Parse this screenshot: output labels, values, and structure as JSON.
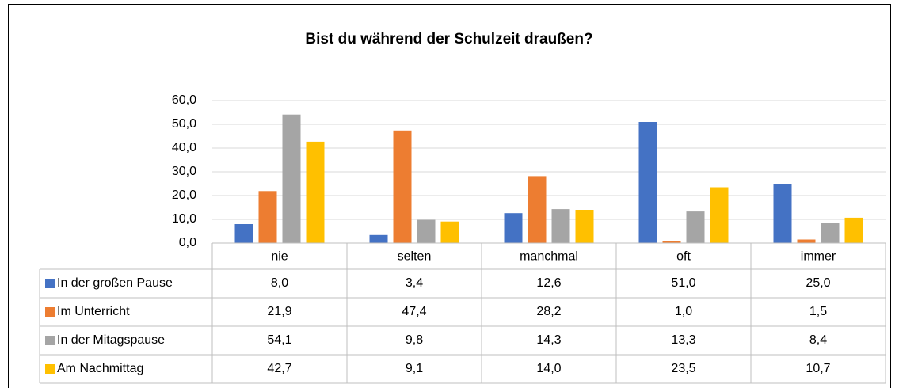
{
  "chart_data": {
    "type": "bar",
    "title": "Bist du während der Schulzeit draußen?",
    "categories": [
      "nie",
      "selten",
      "manchmal",
      "oft",
      "immer"
    ],
    "series": [
      {
        "name": "In der großen Pause",
        "color": "#4472c4",
        "values": [
          8.0,
          3.4,
          12.6,
          51.0,
          25.0
        ],
        "value_labels": [
          "8,0",
          "3,4",
          "12,6",
          "51,0",
          "25,0"
        ]
      },
      {
        "name": "Im Unterricht",
        "color": "#ed7d31",
        "values": [
          21.9,
          47.4,
          28.2,
          1.0,
          1.5
        ],
        "value_labels": [
          "21,9",
          "47,4",
          "28,2",
          "1,0",
          "1,5"
        ]
      },
      {
        "name": "In der Mitagspause",
        "color": "#a5a5a5",
        "values": [
          54.1,
          9.8,
          14.3,
          13.3,
          8.4
        ],
        "value_labels": [
          "54,1",
          "9,8",
          "14,3",
          "13,3",
          "8,4"
        ]
      },
      {
        "name": "Am Nachmittag",
        "color": "#ffc000",
        "values": [
          42.7,
          9.1,
          14.0,
          23.5,
          10.7
        ],
        "value_labels": [
          "42,7",
          "9,1",
          "14,0",
          "23,5",
          "10,7"
        ]
      }
    ],
    "ylim": [
      0,
      60
    ],
    "yticks": [
      {
        "value": 0,
        "label": "0,0"
      },
      {
        "value": 10,
        "label": "10,0"
      },
      {
        "value": 20,
        "label": "20,0"
      },
      {
        "value": 30,
        "label": "30,0"
      },
      {
        "value": 40,
        "label": "40,0"
      },
      {
        "value": 50,
        "label": "50,0"
      },
      {
        "value": 60,
        "label": "60,0"
      }
    ],
    "grid": true
  }
}
